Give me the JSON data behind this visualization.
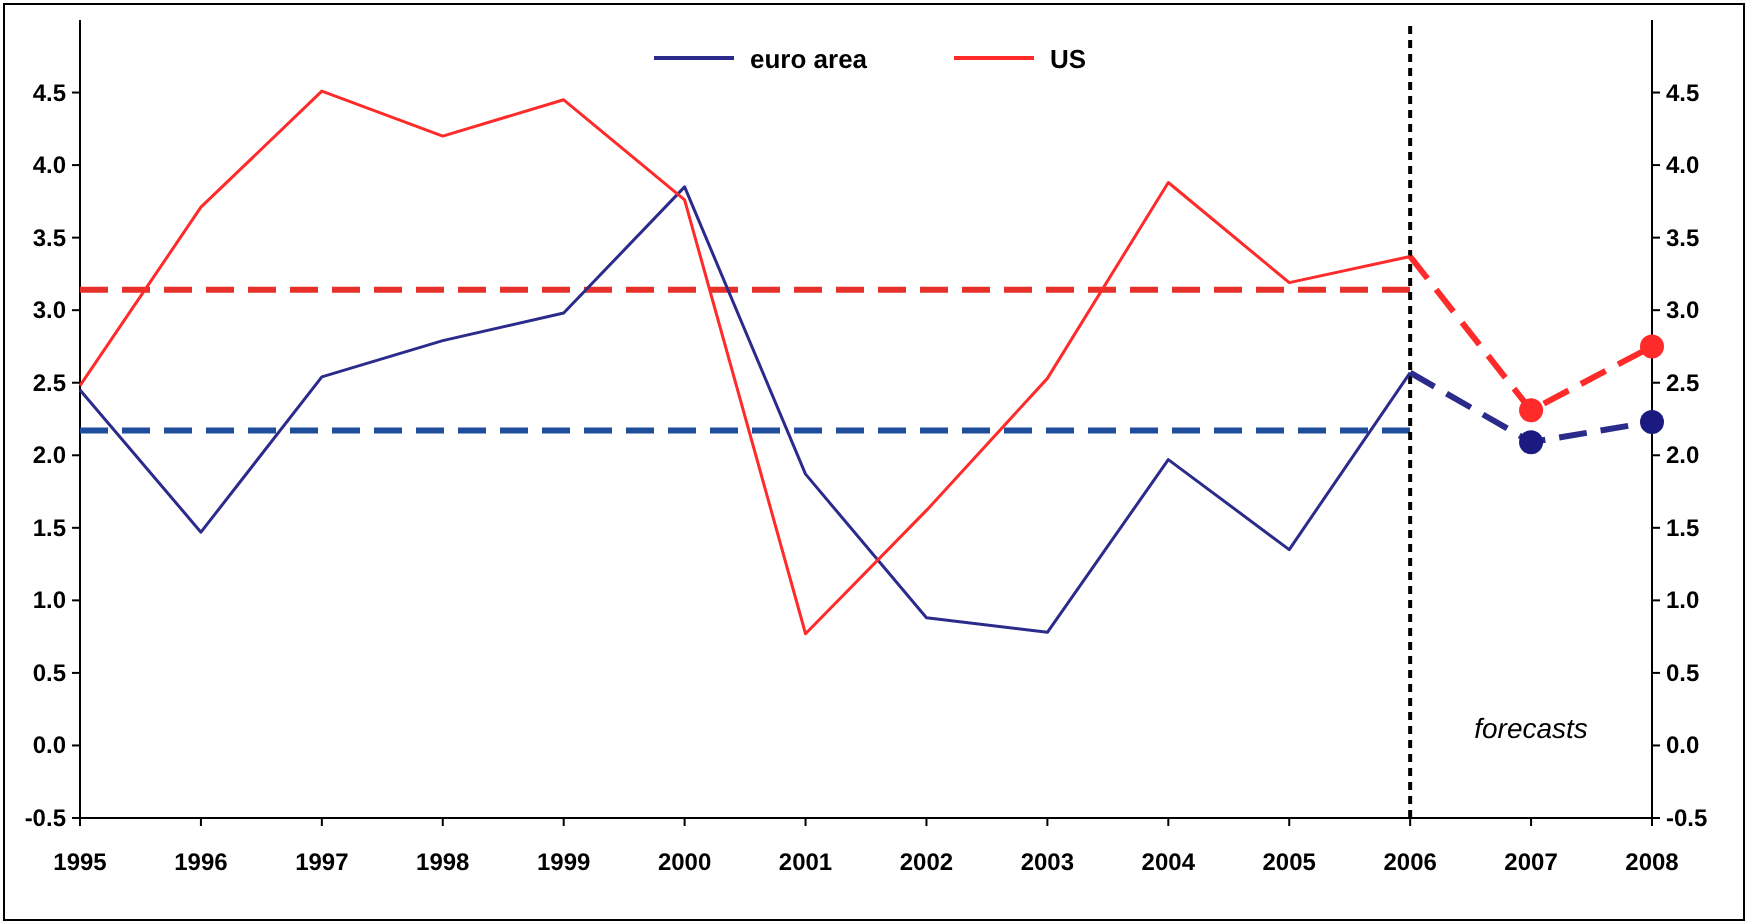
{
  "chart_data": {
    "type": "line",
    "x": [
      1995,
      1996,
      1997,
      1998,
      1999,
      2000,
      2001,
      2002,
      2003,
      2004,
      2005,
      2006
    ],
    "series": [
      {
        "name": "euro area",
        "color": "#2b2b8c",
        "values": [
          2.45,
          1.47,
          2.54,
          2.79,
          2.98,
          3.85,
          1.87,
          0.88,
          0.78,
          1.97,
          1.35,
          2.57
        ]
      },
      {
        "name": "US",
        "color": "#ff2a2a",
        "values": [
          2.48,
          3.71,
          4.51,
          4.2,
          4.45,
          3.76,
          0.77,
          1.62,
          2.53,
          3.88,
          3.19,
          3.37
        ]
      },
      {
        "color": "#2b2b8c",
        "x": [
          2006,
          2007,
          2008
        ],
        "values": [
          2.57,
          2.09,
          2.23
        ],
        "line_style": "dashed"
      },
      {
        "color": "#ff2a2a",
        "x": [
          2006,
          2007,
          2008
        ],
        "values": [
          3.37,
          2.31,
          2.75
        ],
        "line_style": "dashed"
      },
      {
        "type": "scatter",
        "color": "#1a1a80",
        "x": [
          2007,
          2008
        ],
        "values": [
          2.09,
          2.23
        ],
        "marker": "circle"
      },
      {
        "type": "scatter",
        "color": "#ff2a2a",
        "x": [
          2007,
          2008
        ],
        "values": [
          2.31,
          2.75
        ],
        "marker": "circle"
      }
    ],
    "xlim": [
      1995,
      2008
    ],
    "xticks": [
      1995,
      1996,
      1997,
      1998,
      1999,
      2000,
      2001,
      2002,
      2003,
      2004,
      2005,
      2006,
      2007,
      2008
    ],
    "ylim": [
      -0.5,
      5.0
    ],
    "yticks": [
      -0.5,
      {
        "value": 0,
        "label": "0.0"
      },
      0.5,
      {
        "value": 1,
        "label": "1.0"
      },
      1.5,
      {
        "value": 2,
        "label": "2.0"
      },
      2.5,
      {
        "value": 3,
        "label": "3.0"
      },
      3.5,
      {
        "value": 4,
        "label": "4.0"
      },
      4.5
    ],
    "y2lim": [
      -0.5,
      5.0
    ],
    "y2ticks": [
      -0.5,
      {
        "value": 0,
        "label": "0.0"
      },
      0.5,
      {
        "value": 1,
        "label": "1.0"
      },
      1.5,
      {
        "value": 2,
        "label": "2.0"
      },
      2.5,
      {
        "value": 3,
        "label": "3.0"
      },
      3.5,
      {
        "value": 4,
        "label": "4.0"
      },
      4.5
    ],
    "ref_lines": [
      {
        "axis": "y",
        "value": 3.14,
        "color": "#e8302a",
        "line_style": "dashed"
      },
      {
        "axis": "y",
        "value": 2.17,
        "color": "#1f4e9c",
        "line_style": "dashed"
      },
      {
        "axis": "x",
        "value": 2006,
        "color": "#000000",
        "line_style": "dotted"
      }
    ],
    "annotations": [
      "forecasts"
    ],
    "legend": "top",
    "grid": false,
    "line_style": "solid"
  }
}
